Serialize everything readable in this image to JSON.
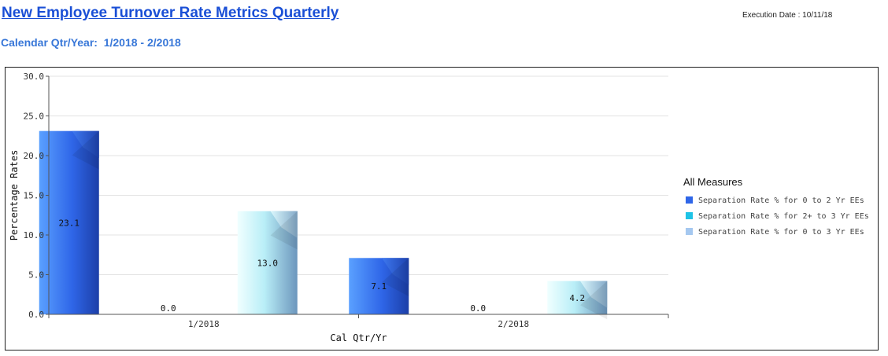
{
  "header": {
    "title": "New Employee Turnover Rate Metrics Quarterly",
    "execution_label": "Execution Date : ",
    "execution_date": "10/11/18",
    "subtitle": "Calendar Qtr/Year:  1/2018 - 2/2018"
  },
  "chart_data": {
    "type": "bar",
    "categories": [
      "1/2018",
      "2/2018"
    ],
    "series": [
      {
        "name": "Separation Rate % for 0 to 2 Yr EEs",
        "values": [
          23.1,
          7.1
        ],
        "labels": [
          "23.1",
          "7.1"
        ],
        "color": "#2f66e8"
      },
      {
        "name": "Separation Rate % for 2+ to 3 Yr EEs",
        "values": [
          0.0,
          0.0
        ],
        "labels": [
          "0.0",
          "0.0"
        ],
        "color": "#1ec3e6"
      },
      {
        "name": "Separation Rate % for 0 to 3 Yr EEs",
        "values": [
          13.0,
          4.2
        ],
        "labels": [
          "13.0",
          "4.2"
        ],
        "color": "#a5c8f0"
      }
    ],
    "xlabel": "Cal Qtr/Yr",
    "ylabel": "Percentage Rates",
    "ylim": [
      0,
      30
    ],
    "yticks": [
      "0.0",
      "5.0",
      "10.0",
      "15.0",
      "20.0",
      "25.0",
      "30.0"
    ],
    "ytick_values": [
      0,
      5,
      10,
      15,
      20,
      25,
      30
    ],
    "legend_title": "All Measures",
    "legend_position": "right",
    "grid": true
  }
}
